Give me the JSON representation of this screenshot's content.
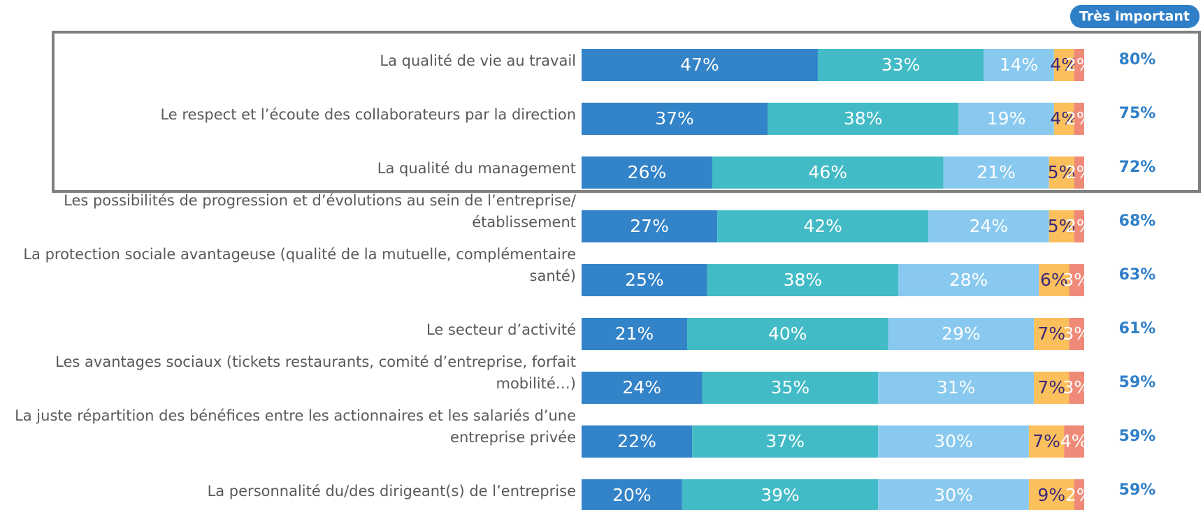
{
  "chart_data": {
    "type": "stacked-bar-horizontal",
    "categories": [
      "La qualité de vie au travail",
      "Le respect et l’écoute des collaborateurs par la direction",
      "La qualité du management",
      "Les possibilités de progression et d’évolutions au sein de l’entreprise/établissement",
      "La protection sociale avantageuse (qualité de la mutuelle, complémentaire santé)",
      "Le secteur d’activité",
      "Les avantages sociaux (tickets restaurants, comité d’entreprise, forfait mobilité…)",
      "La juste répartition des bénéfices entre les actionnaires et les salariés d’une entreprise privée",
      "La personnalité du/des dirigeant(s) de l’entreprise"
    ],
    "xlim": [
      0,
      100
    ],
    "series": [
      {
        "color": "#3283c8",
        "values": [
          47,
          37,
          26,
          27,
          25,
          21,
          24,
          22,
          20
        ],
        "value_labels": [
          "47%",
          "37%",
          "26%",
          "27%",
          "25%",
          "21%",
          "24%",
          "22%",
          "20%"
        ]
      },
      {
        "color": "#43bbc6",
        "values": [
          33,
          38,
          46,
          42,
          38,
          40,
          35,
          37,
          39
        ],
        "value_labels": [
          "33%",
          "38%",
          "46%",
          "42%",
          "38%",
          "40%",
          "35%",
          "37%",
          "39%"
        ]
      },
      {
        "color": "#89c9ef",
        "values": [
          14,
          19,
          21,
          24,
          28,
          29,
          31,
          30,
          30
        ],
        "value_labels": [
          "14%",
          "19%",
          "21%",
          "24%",
          "28%",
          "29%",
          "31%",
          "30%",
          "30%"
        ]
      },
      {
        "color": "#fbbf5c",
        "values": [
          4,
          4,
          5,
          5,
          6,
          7,
          7,
          7,
          9
        ],
        "value_labels": [
          "4%",
          "4%",
          "5%",
          "5%",
          "6%",
          "7%",
          "7%",
          "7%",
          "9%"
        ]
      },
      {
        "color": "#f08a78",
        "values": [
          2,
          2,
          2,
          2,
          3,
          3,
          3,
          4,
          2
        ],
        "value_labels": [
          "2%",
          "2%",
          "2%",
          "2%",
          "3%",
          "3%",
          "3%",
          "4%",
          "2%"
        ]
      }
    ],
    "totals": {
      "title": "Très important",
      "values": [
        80,
        75,
        72,
        68,
        63,
        61,
        59,
        59,
        59
      ],
      "value_labels": [
        "80%",
        "75%",
        "72%",
        "68%",
        "63%",
        "61%",
        "59%",
        "59%",
        "59%"
      ]
    }
  }
}
